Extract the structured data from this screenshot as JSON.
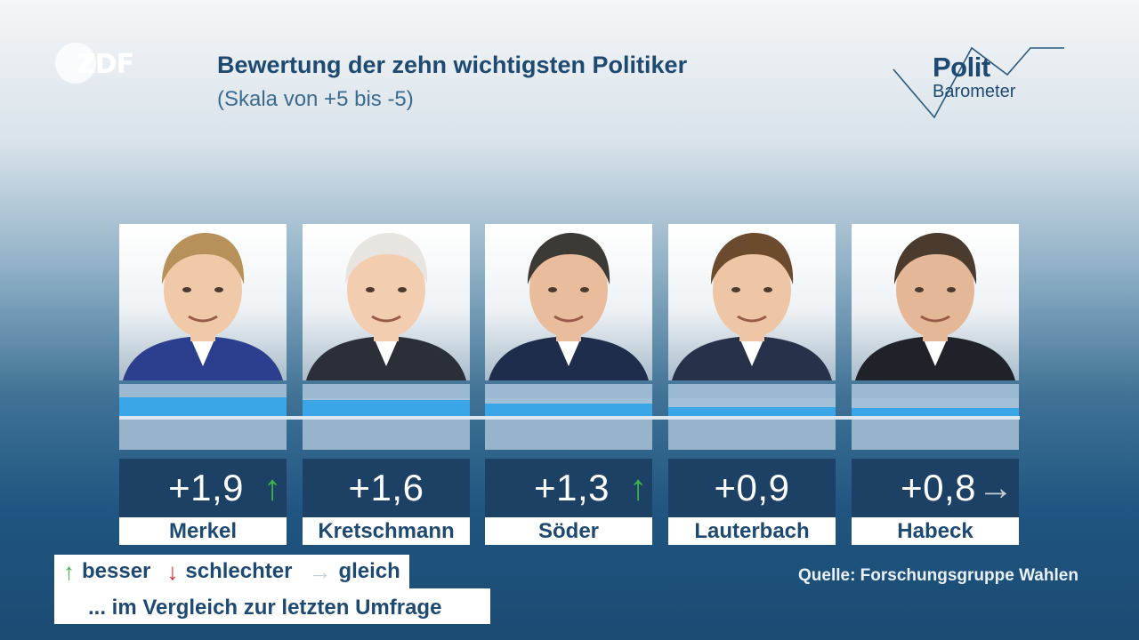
{
  "branding": {
    "broadcaster_logo": "ZDF",
    "show_logo_line1": "Polit",
    "show_logo_line2": "Barometer"
  },
  "header": {
    "title": "Bewertung der zehn wichtigsten Politiker",
    "subtitle": "(Skala von +5 bis -5)"
  },
  "chart_data": {
    "type": "bar",
    "categories": [
      "Merkel",
      "Kretschmann",
      "Söder",
      "Lauterbach",
      "Habeck"
    ],
    "values": [
      1.9,
      1.6,
      1.3,
      0.9,
      0.8
    ],
    "value_labels": [
      "+1,9",
      "+1,6",
      "+1,3",
      "+0,9",
      "+0,8"
    ],
    "trends": [
      "up",
      "none",
      "up",
      "none",
      "same"
    ],
    "trend_symbols": {
      "up": "↑",
      "down": "↓",
      "same": "→"
    },
    "ylim": [
      -5,
      5
    ],
    "title": "Bewertung der zehn wichtigsten Politiker",
    "subtitle": "(Skala von +5 bis -5)",
    "colors": {
      "bar": "#3aa6e8",
      "value_box": "#1c4165",
      "up": "#3fb648",
      "down": "#e3262c",
      "same": "#c7cfd6"
    }
  },
  "legend": {
    "up_symbol": "↑",
    "up_label": "besser",
    "down_symbol": "↓",
    "down_label": "schlechter",
    "same_symbol": "→",
    "same_label": "gleich",
    "note": "... im Vergleich zur letzten Umfrage"
  },
  "footer": {
    "source": "Quelle: Forschungsgruppe Wahlen"
  }
}
